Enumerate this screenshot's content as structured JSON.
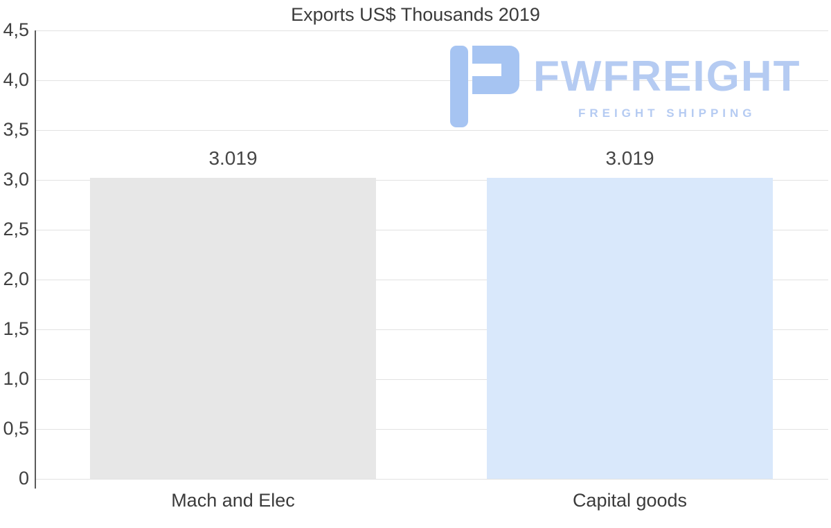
{
  "chart_data": {
    "type": "bar",
    "title": "Exports US$ Thousands 2019",
    "categories": [
      "Mach and Elec",
      "Capital goods"
    ],
    "values": [
      3.019,
      3.019
    ],
    "data_labels": [
      "3.019",
      "3.019"
    ],
    "bar_colors": [
      "#e7e7e7",
      "#d9e8fb"
    ],
    "ylim": [
      0,
      4.5
    ],
    "ytick_values": [
      4.5,
      4.0,
      3.5,
      3.0,
      2.5,
      2.0,
      1.5,
      1.0,
      0.5,
      0
    ],
    "ytick_labels": [
      "4,5",
      "4,0",
      "3,5",
      "3,0",
      "2,5",
      "2,0",
      "1,5",
      "1,0",
      "0,5",
      "0"
    ],
    "xlabel": "",
    "ylabel": "",
    "grid": true,
    "legend": false
  },
  "watermark": {
    "brand": "FWFREIGHT",
    "tagline": "FREIGHT SHIPPING",
    "text_color": "#b5cbf2",
    "icon_color": "#a6c4f2"
  },
  "colors": {
    "background": "#ffffff",
    "axis": "#5a5a5a",
    "grid": "#e2e2e2",
    "title_text": "#3b3b3b",
    "value_text": "#464646"
  }
}
